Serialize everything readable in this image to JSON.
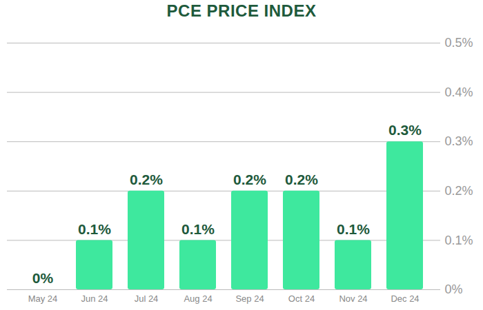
{
  "chart_data": {
    "type": "bar",
    "title": "PCE PRICE INDEX",
    "categories": [
      "May 24",
      "Jun 24",
      "Jul 24",
      "Aug 24",
      "Sep 24",
      "Oct 24",
      "Nov 24",
      "Dec 24"
    ],
    "values": [
      0,
      0.1,
      0.2,
      0.1,
      0.2,
      0.2,
      0.1,
      0.3
    ],
    "value_labels": [
      "0%",
      "0.1%",
      "0.2%",
      "0.1%",
      "0.2%",
      "0.2%",
      "0.1%",
      "0.3%"
    ],
    "data_labels": true,
    "color": "#3ee89e",
    "ylim": [
      0,
      0.5
    ],
    "yticks": [
      {
        "value": 0,
        "label": "0%"
      },
      {
        "value": 0.1,
        "label": "0.1%"
      },
      {
        "value": 0.2,
        "label": "0.2%"
      },
      {
        "value": 0.3,
        "label": "0.3%"
      },
      {
        "value": 0.4,
        "label": "0.4%"
      },
      {
        "value": 0.5,
        "label": "0.5%"
      }
    ],
    "grid": true
  }
}
